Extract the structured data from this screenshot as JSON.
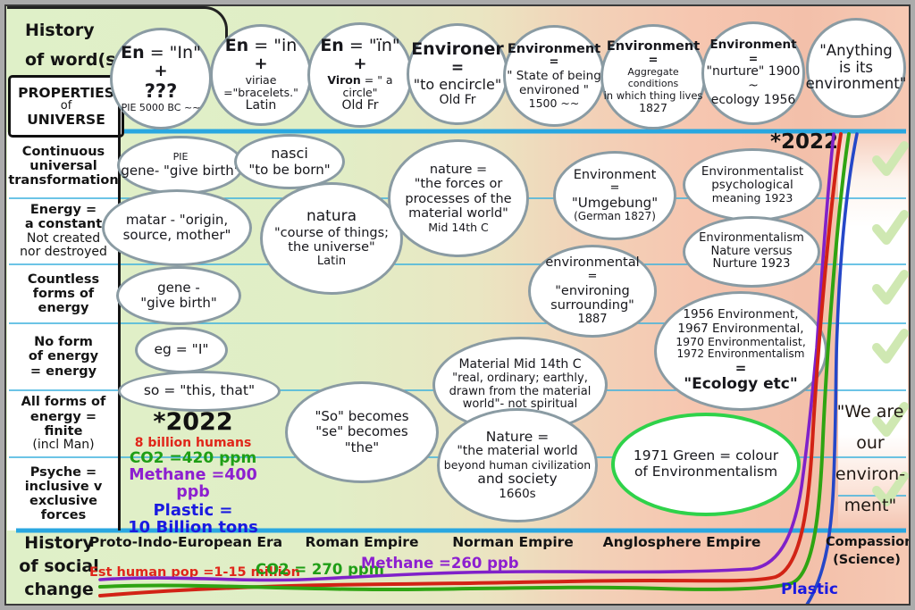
{
  "title": {
    "line1": "History",
    "line2": "of word(s)"
  },
  "properties_box": {
    "lines": [
      "PROPERTIES",
      "of",
      "UNIVERSE"
    ]
  },
  "left_rows": [
    {
      "bold": [
        "Continuous",
        "universal",
        "transformation"
      ],
      "normal": []
    },
    {
      "bold": [
        "Energy =",
        "a constant"
      ],
      "normal": [
        "Not created",
        "nor destroyed"
      ]
    },
    {
      "bold": [
        "Countless",
        "forms of",
        "energy"
      ],
      "normal": []
    },
    {
      "bold": [
        "No form",
        "of energy",
        "= energy"
      ],
      "normal": []
    },
    {
      "bold": [
        "All forms of",
        "energy =",
        "finite"
      ],
      "normal": [
        "(incl Man)"
      ]
    },
    {
      "bold": [
        "Psyche =",
        "inclusive v",
        "exclusive",
        "forces"
      ],
      "normal": []
    }
  ],
  "word_circles": [
    {
      "id": "c1",
      "lines": [
        {
          "lead": "En",
          "rest": " = \"In\"",
          "fs": 19
        },
        {
          "t": "+",
          "b": true,
          "fs": 18
        },
        {
          "t": "???",
          "b": true,
          "fs": 21
        },
        {
          "t": "PIE 5000 BC ~~",
          "fs": 11
        }
      ]
    },
    {
      "id": "c2",
      "lines": [
        {
          "lead": "En",
          "rest": " = \"in",
          "fs": 19
        },
        {
          "t": "+",
          "b": true,
          "fs": 18
        },
        {
          "t": "viriae =\"bracelets.\"",
          "fs": 12.5
        },
        {
          "t": "Latin",
          "fs": 14
        }
      ]
    },
    {
      "id": "c3",
      "lines": [
        {
          "lead": "En",
          "rest": " = \"ïn\"",
          "fs": 19
        },
        {
          "t": "+",
          "b": true,
          "fs": 18
        },
        {
          "lead": "Viron",
          "rest": " = \" a circle\"",
          "fs": 12.5
        },
        {
          "t": "Old Fr",
          "fs": 14
        }
      ]
    },
    {
      "id": "c4",
      "lines": [
        {
          "t": "Environer",
          "b": true,
          "fs": 19
        },
        {
          "t": "=",
          "b": true,
          "fs": 17
        },
        {
          "t": "\"to encircle\"",
          "fs": 16
        },
        {
          "t": "Old Fr",
          "fs": 14
        }
      ]
    },
    {
      "id": "c5",
      "lines": [
        {
          "t": "Environment",
          "b": true,
          "fs": 14.5
        },
        {
          "t": "=",
          "b": true,
          "fs": 13
        },
        {
          "t": "\" State of being",
          "fs": 13.5
        },
        {
          "t": "environed \"",
          "fs": 13.5
        },
        {
          "t": "1500 ~~",
          "fs": 12.5
        }
      ]
    },
    {
      "id": "c6",
      "lines": [
        {
          "t": "Environment",
          "b": true,
          "fs": 14.5
        },
        {
          "t": "=",
          "b": true,
          "fs": 13
        },
        {
          "t": "Aggregate conditions",
          "fs": 11
        },
        {
          "t": "in which thing lives",
          "fs": 11.5
        },
        {
          "t": "1827",
          "fs": 12.5
        }
      ]
    },
    {
      "id": "c7",
      "lines": [
        {
          "t": "Environment",
          "b": true,
          "fs": 13.5
        },
        {
          "t": "=",
          "b": true,
          "fs": 12.5
        },
        {
          "t": "\"nurture\" 1900 ~",
          "fs": 14
        },
        {
          "t": "ecology 1956",
          "fs": 14
        }
      ]
    },
    {
      "id": "c8",
      "lines": [
        {
          "t": "\"Anything",
          "fs": 16.5
        },
        {
          "t": "is its",
          "fs": 16.5
        },
        {
          "t": "environment\"",
          "fs": 16.5
        }
      ]
    }
  ],
  "bubbles": [
    {
      "id": "e1",
      "lines": [
        {
          "t": "PIE",
          "fs": 11
        },
        {
          "t": "gene- \"give birth\"",
          "fs": 15
        }
      ]
    },
    {
      "id": "e2",
      "lines": [
        {
          "t": "nasci",
          "fs": 16
        },
        {
          "t": "\"to be born\"",
          "fs": 15
        }
      ]
    },
    {
      "id": "e3",
      "lines": [
        {
          "t": "matar - \"origin,",
          "fs": 15
        },
        {
          "t": "source, mother\"",
          "fs": 15
        }
      ]
    },
    {
      "id": "e4",
      "lines": [
        {
          "t": "natura",
          "fs": 17
        },
        {
          "t": "\"course of things;",
          "fs": 14.5
        },
        {
          "t": "the universe\"",
          "fs": 14.5
        },
        {
          "t": "Latin",
          "fs": 13
        }
      ]
    },
    {
      "id": "e5",
      "lines": [
        {
          "t": "nature =",
          "fs": 14.5
        },
        {
          "t": "\"the forces or",
          "fs": 14.5
        },
        {
          "t": "processes of the",
          "fs": 14.5
        },
        {
          "t": "material world\"",
          "fs": 14.5
        },
        {
          "t": "Mid 14th C",
          "fs": 12.5
        }
      ]
    },
    {
      "id": "e6",
      "lines": [
        {
          "t": "Environment",
          "fs": 14.5
        },
        {
          "t": "=",
          "fs": 13
        },
        {
          "t": "\"Umgebung\"",
          "fs": 15
        },
        {
          "t": "(German 1827)",
          "fs": 12
        }
      ]
    },
    {
      "id": "e7",
      "lines": [
        {
          "t": "Environmentalist",
          "fs": 13.5
        },
        {
          "t": "psychological",
          "fs": 13.5
        },
        {
          "t": "meaning 1923",
          "fs": 12.5
        }
      ]
    },
    {
      "id": "e8",
      "lines": [
        {
          "t": "Environmentalism",
          "fs": 13
        },
        {
          "t": "Nature versus",
          "fs": 13
        },
        {
          "t": "Nurture 1923",
          "fs": 13
        }
      ]
    },
    {
      "id": "e9",
      "lines": [
        {
          "t": "gene -",
          "fs": 15
        },
        {
          "t": "\"give birth\"",
          "fs": 15
        }
      ]
    },
    {
      "id": "e10",
      "lines": [
        {
          "t": "environmental",
          "fs": 14.5
        },
        {
          "t": "=",
          "fs": 13
        },
        {
          "t": "\"environing",
          "fs": 14.5
        },
        {
          "t": "surrounding\"",
          "fs": 14.5
        },
        {
          "t": "1887",
          "fs": 13
        }
      ]
    },
    {
      "id": "e11",
      "lines": [
        {
          "t": "1956 Environment,",
          "fs": 13.5
        },
        {
          "t": "1967 Environmental,",
          "fs": 13.5
        },
        {
          "t": "1970 Environmentalist,",
          "fs": 12.5
        },
        {
          "t": "1972 Environmentalism",
          "fs": 12
        },
        {
          "t": "=",
          "b": true,
          "fs": 15
        },
        {
          "t": "\"Ecology etc\"",
          "b": true,
          "fs": 17
        }
      ]
    },
    {
      "id": "e12",
      "lines": [
        {
          "t": "eg = \"I\"",
          "fs": 15.5
        }
      ]
    },
    {
      "id": "e13",
      "lines": [
        {
          "t": "so = \"this, that\"",
          "fs": 15.5
        }
      ]
    },
    {
      "id": "e14",
      "lines": [
        {
          "t": "Material Mid 14th C",
          "fs": 14
        },
        {
          "t": "\"real, ordinary; earthly,",
          "fs": 13
        },
        {
          "t": "drawn from the material",
          "fs": 13
        },
        {
          "t": "world\"- not spiritual",
          "fs": 13
        }
      ]
    },
    {
      "id": "e15",
      "lines": [
        {
          "t": "\"So\" becomes",
          "fs": 15
        },
        {
          "t": "\"se\" becomes",
          "fs": 15
        },
        {
          "t": "\"the\"",
          "fs": 15
        }
      ]
    },
    {
      "id": "e16",
      "lines": [
        {
          "t": "Nature =",
          "fs": 15.5
        },
        {
          "t": "\"the material world",
          "fs": 14
        },
        {
          "t": "beyond human civilization",
          "fs": 12.5
        },
        {
          "t": "and society",
          "fs": 15.5
        },
        {
          "t": "1660s",
          "fs": 13.5
        }
      ]
    },
    {
      "id": "e17",
      "lines": [
        {
          "t": "1971 Green = colour",
          "fs": 15.5
        },
        {
          "t": "of Environmentalism",
          "fs": 15.5
        }
      ]
    }
  ],
  "annotations_2022": {
    "top_right": "*2022",
    "mid_left": {
      "title": "*2022",
      "items": [
        {
          "text": "8 billion humans",
          "color": "#e0261a",
          "fs": 14
        },
        {
          "text": "CO2 =420 ppm",
          "color": "#1f9e16",
          "fs": 17
        },
        {
          "text": "Methane =400 ppb",
          "color": "#8d1fd0",
          "fs": 17.5
        },
        {
          "text": "Plastic =",
          "color": "#1a1ae0",
          "fs": 18
        },
        {
          "text": "10 Billion tons",
          "color": "#1a1ae0",
          "fs": 18
        }
      ]
    }
  },
  "right_quote": {
    "lines": [
      "\"We are",
      "our",
      "environ-",
      "ment\""
    ]
  },
  "bottom": {
    "title_lines": [
      "History",
      "of social",
      "change"
    ],
    "eras": [
      "Proto-Indo-European Era",
      "Roman Empire",
      "Norman Empire",
      "Anglosphere Empire"
    ],
    "right_label_lines": [
      "Compassion",
      "(Science)"
    ],
    "baseline_annotations": [
      {
        "text": "Est human pop =1-15 million",
        "color": "#e0261a",
        "fs": 14.5
      },
      {
        "text": "CO2 = 270 ppm",
        "color": "#1f9e16",
        "fs": 16.5
      },
      {
        "text": "Methane =260 ppb",
        "color": "#8d1fd0",
        "fs": 16.5
      }
    ],
    "plastic_label": {
      "text": "Plastic",
      "color": "#1a1ae0"
    }
  },
  "curves": [
    {
      "name": "methane-curve",
      "color": "#8021c9"
    },
    {
      "name": "human-population-curve",
      "color": "#d22315"
    },
    {
      "name": "co2-curve",
      "color": "#2fa412"
    },
    {
      "name": "plastic-curve",
      "color": "#2547c8"
    }
  ],
  "checkmark_color": "#cfe8b2",
  "line_colors": {
    "thin": "#3bb1de",
    "thick": "#2aa7e0"
  }
}
